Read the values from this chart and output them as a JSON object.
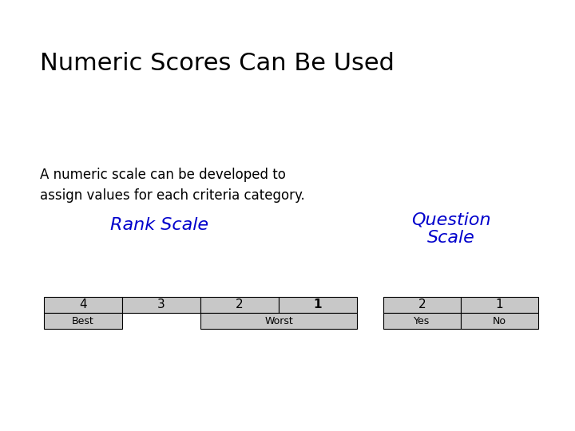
{
  "title": "Numeric Scores Can Be Used",
  "subtitle_line1": "A numeric scale can be developed to",
  "subtitle_line2": "assign values for each criteria category.",
  "rank_scale_label": "Rank Scale",
  "question_scale_label": "Question\nScale",
  "rank_top_values": [
    "4",
    "3",
    "2",
    "1"
  ],
  "question_top_values": [
    "2",
    "1"
  ],
  "question_bottom_values": [
    "Yes",
    "No"
  ],
  "title_color": "#000000",
  "subtitle_color": "#000000",
  "rank_label_color": "#0000CC",
  "question_label_color": "#0000CC",
  "table_bg": "#C8C8C8",
  "table_border": "#000000",
  "background_color": "#FFFFFF"
}
